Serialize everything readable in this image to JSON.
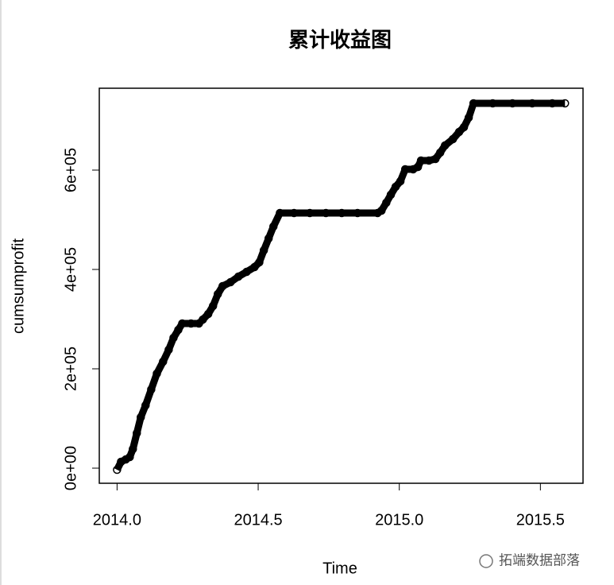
{
  "chart_data": {
    "type": "scatter",
    "title": "累计收益图",
    "x_label": "Time",
    "y_label": "cumsumprofit",
    "watermark": "拓端数据部落",
    "x": [
      2014.0,
      2014.014,
      2014.031,
      2014.045,
      2014.056,
      2014.07,
      2014.084,
      2014.101,
      2014.121,
      2014.141,
      2014.163,
      2014.183,
      2014.2,
      2014.217,
      2014.231,
      2014.262,
      2014.29,
      2014.304,
      2014.323,
      2014.34,
      2014.357,
      2014.374,
      2014.402,
      2014.43,
      2014.459,
      2014.487,
      2014.504,
      2014.52,
      2014.537,
      2014.554,
      2014.577,
      2014.627,
      2014.683,
      2014.74,
      2014.796,
      2014.852,
      2014.923,
      2014.937,
      2014.954,
      2014.97,
      2014.987,
      2015.004,
      2015.021,
      2015.049,
      2015.066,
      2015.077,
      2015.105,
      2015.128,
      2015.145,
      2015.162,
      2015.19,
      2015.212,
      2015.229,
      2015.246,
      2015.263,
      2015.331,
      2015.401,
      2015.471,
      2015.542,
      2015.587
    ],
    "y": [
      -3200,
      12800,
      17600,
      22400,
      38400,
      70400,
      102400,
      126400,
      158400,
      190400,
      214400,
      238400,
      262400,
      278400,
      291200,
      291200,
      291200,
      299200,
      310400,
      326400,
      350400,
      366400,
      374400,
      385600,
      395200,
      404800,
      414400,
      438400,
      462400,
      486400,
      513600,
      513600,
      513600,
      513600,
      513600,
      513600,
      513600,
      518400,
      534400,
      550400,
      566400,
      577600,
      601600,
      601600,
      606400,
      619200,
      619200,
      622400,
      635200,
      649600,
      662400,
      676800,
      686400,
      705600,
      734400,
      734400,
      734400,
      734400,
      734400,
      734400
    ],
    "color": "#000000",
    "xlim": [
      2013.937,
      2015.651
    ],
    "ylim": [
      -30400,
      764800
    ],
    "xticks": [
      {
        "value": 2014,
        "label": "2014.0"
      },
      2014.5,
      {
        "value": 2015,
        "label": "2015.0"
      },
      2015.5
    ],
    "yticks": [
      {
        "value": 0,
        "label": "0e+00"
      },
      {
        "value": 200000,
        "label": "2e+05"
      },
      {
        "value": 400000,
        "label": "4e+05"
      },
      {
        "value": 600000,
        "label": "6e+05"
      }
    ]
  }
}
